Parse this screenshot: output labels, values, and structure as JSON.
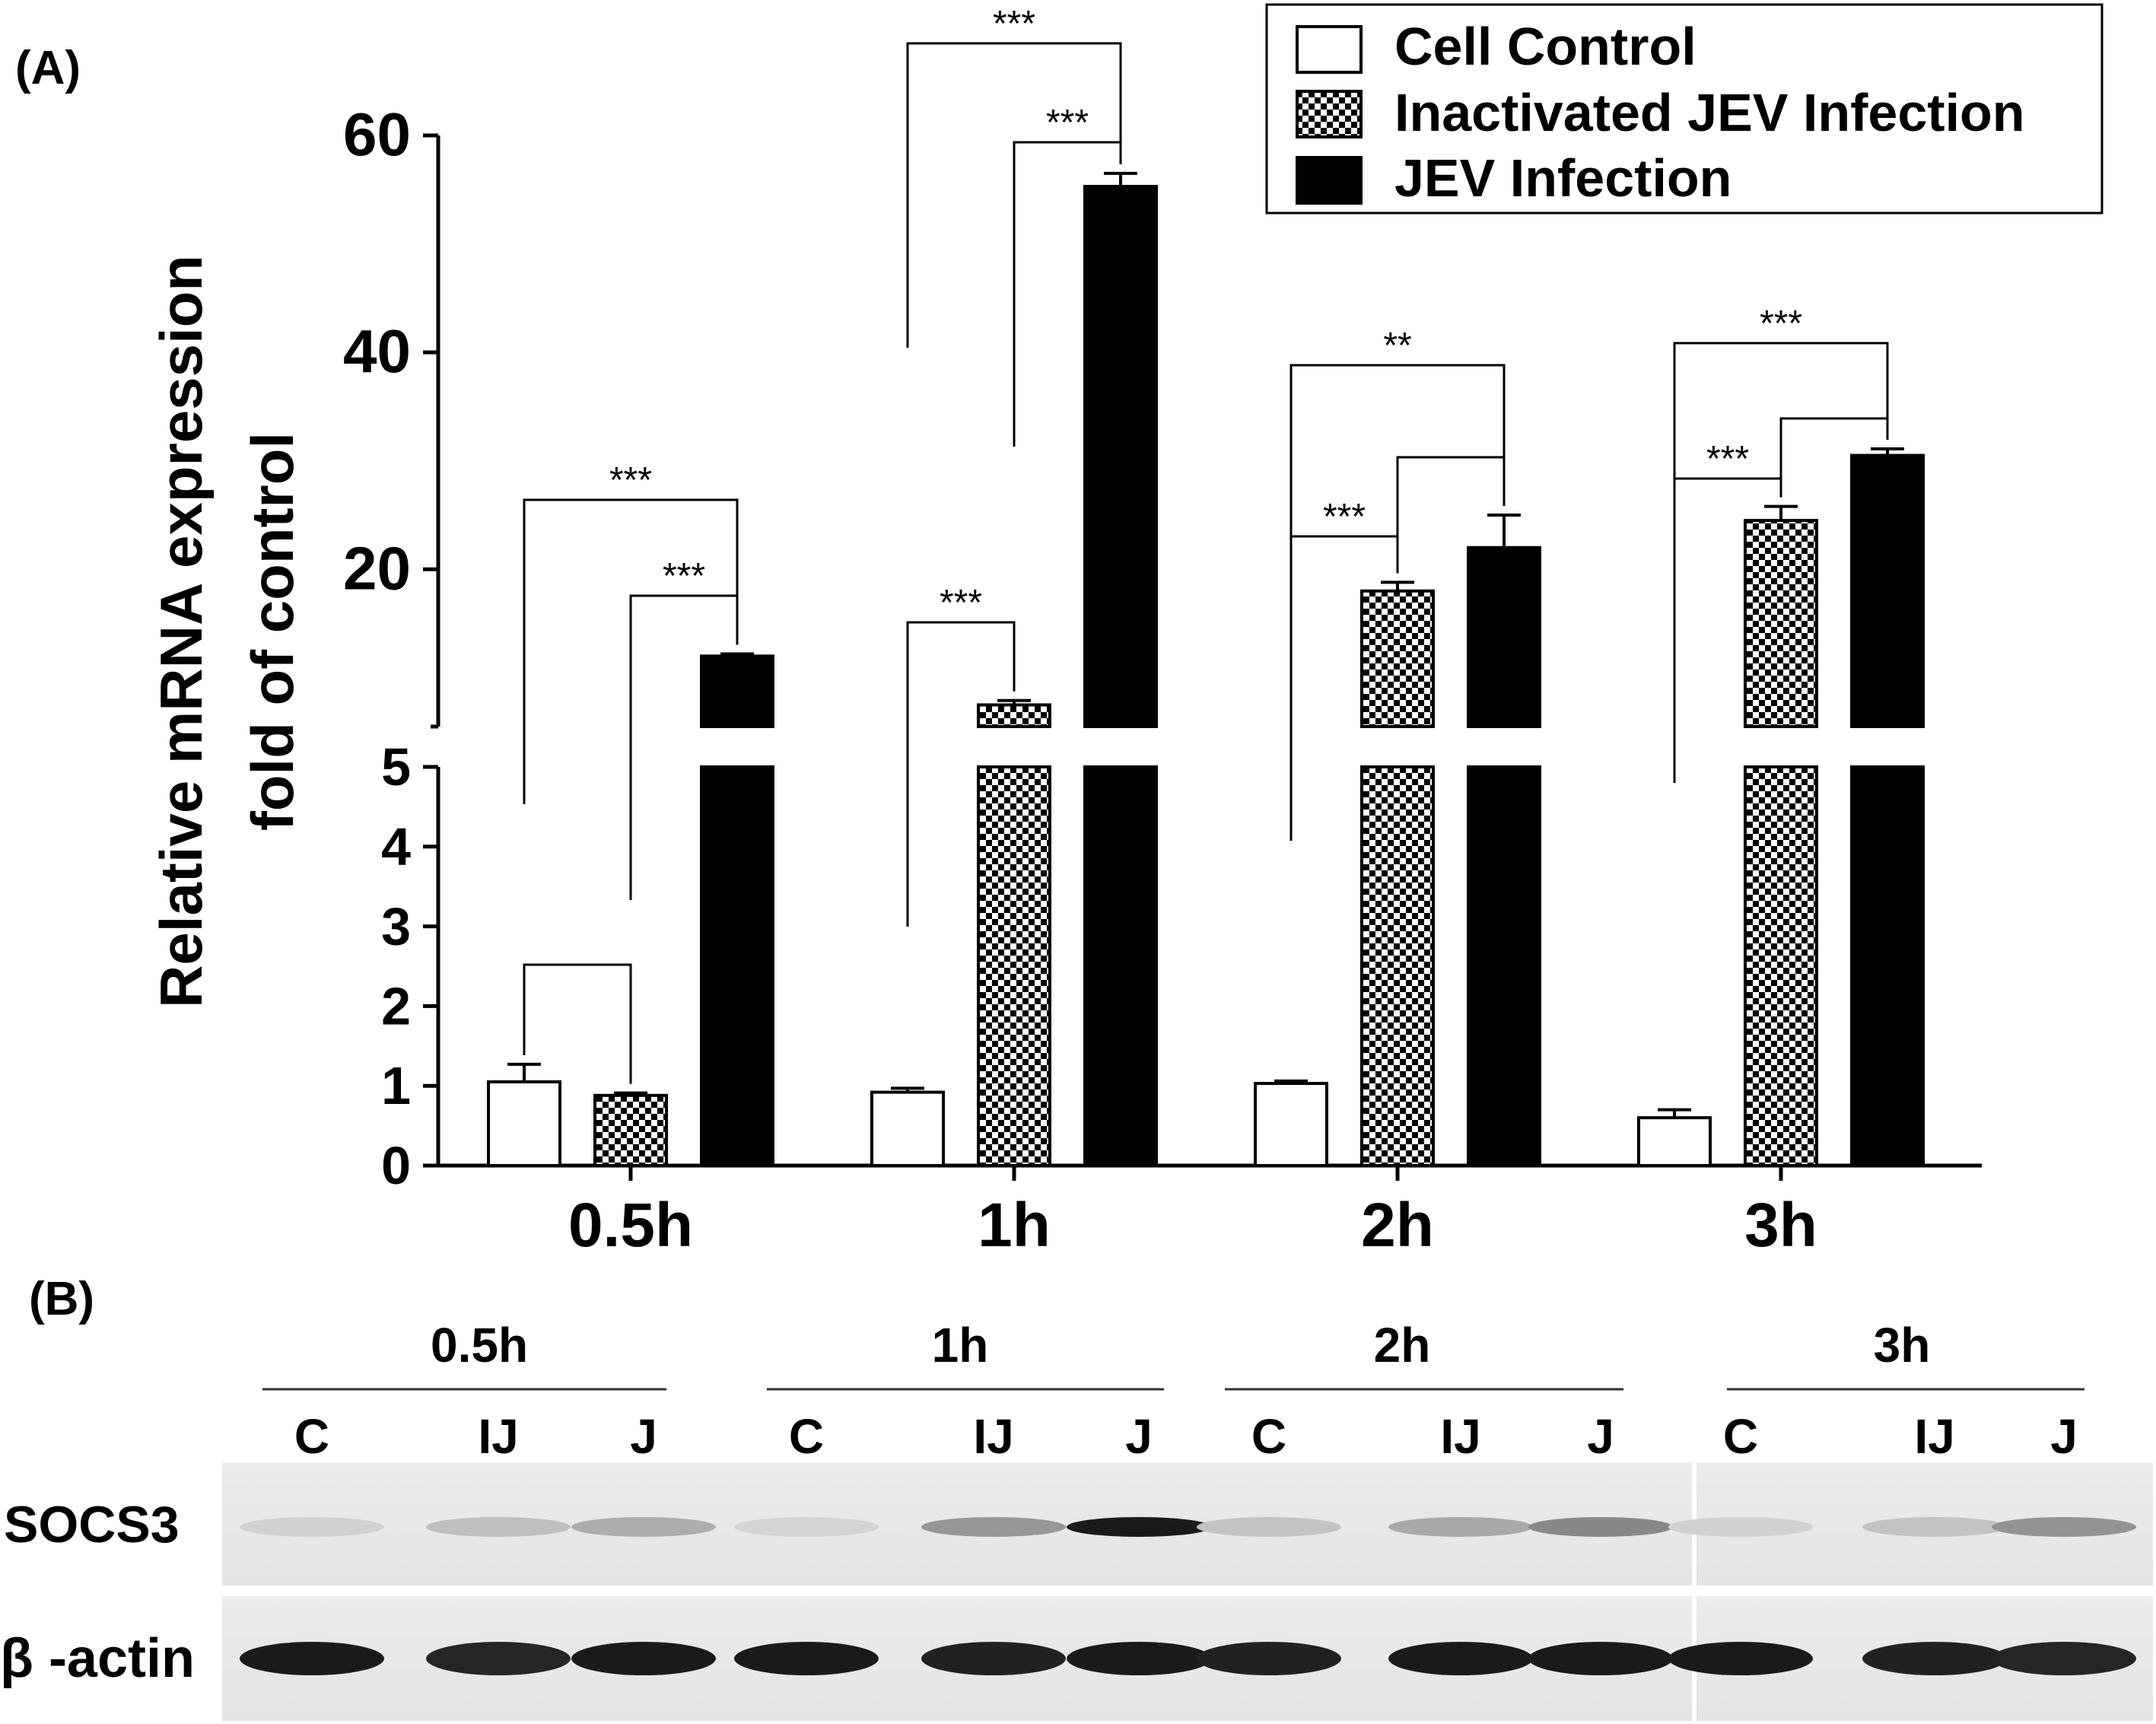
{
  "panel_a_label": "(A)",
  "panel_b_label": "(B)",
  "chart_data": {
    "type": "bar",
    "title": "",
    "xlabel": "",
    "ylabel": [
      "Relative mRNA expression",
      "fold of control"
    ],
    "categories": [
      "0.5h",
      "1h",
      "2h",
      "3h"
    ],
    "series": [
      {
        "name": "Cell Control",
        "pattern": "open",
        "values": [
          1.05,
          0.92,
          1.03,
          0.6
        ],
        "errors": [
          0.22,
          0.05,
          0.03,
          0.1
        ]
      },
      {
        "name": "Inactivated JEV Infection",
        "pattern": "checkered",
        "values": [
          0.88,
          7.5,
          18.0,
          24.5
        ],
        "errors": [
          0.03,
          0.4,
          0.8,
          1.3
        ]
      },
      {
        "name": "JEV Infection",
        "pattern": "solid",
        "values": [
          12.0,
          55.3,
          22.0,
          30.5
        ],
        "errors": [
          0.2,
          1.2,
          3.0,
          0.6
        ]
      }
    ],
    "y_axis_break": {
      "lower_range": [
        0,
        5
      ],
      "upper_range": [
        5.5,
        60
      ],
      "lower_ticks": [
        "0",
        "1",
        "2",
        "3",
        "4",
        "5"
      ],
      "upper_ticks": [
        "20",
        "40",
        "60"
      ]
    },
    "significance": [
      {
        "group": "0.5h",
        "pair": [
          "Cell Control",
          "JEV Infection"
        ],
        "label": "***"
      },
      {
        "group": "0.5h",
        "pair": [
          "Inactivated JEV Infection",
          "JEV Infection"
        ],
        "label": "***"
      },
      {
        "group": "0.5h",
        "pair": [
          "Cell Control",
          "Inactivated JEV Infection"
        ],
        "label": ""
      },
      {
        "group": "1h",
        "pair": [
          "Cell Control",
          "JEV Infection"
        ],
        "label": "***"
      },
      {
        "group": "1h",
        "pair": [
          "Inactivated JEV Infection",
          "JEV Infection"
        ],
        "label": "***"
      },
      {
        "group": "1h",
        "pair": [
          "Cell Control",
          "Inactivated JEV Infection"
        ],
        "label": "***"
      },
      {
        "group": "2h",
        "pair": [
          "Cell Control",
          "JEV Infection"
        ],
        "label": "**"
      },
      {
        "group": "2h",
        "pair": [
          "Inactivated JEV Infection",
          "JEV Infection"
        ],
        "label": ""
      },
      {
        "group": "2h",
        "pair": [
          "Cell Control",
          "Inactivated JEV Infection"
        ],
        "label": "***"
      },
      {
        "group": "3h",
        "pair": [
          "Cell Control",
          "JEV Infection"
        ],
        "label": "***"
      },
      {
        "group": "3h",
        "pair": [
          "Inactivated JEV Infection",
          "JEV Infection"
        ],
        "label": ""
      },
      {
        "group": "3h",
        "pair": [
          "Cell Control",
          "Inactivated JEV Infection"
        ],
        "label": "***"
      }
    ],
    "legend_position": "top-right",
    "grid": false
  },
  "blot": {
    "timepoints": [
      "0.5h",
      "1h",
      "2h",
      "3h"
    ],
    "lane_labels": [
      "C",
      "IJ",
      "J",
      "C",
      "IJ",
      "J",
      "C",
      "IJ",
      "J",
      "C",
      "IJ",
      "J"
    ],
    "rows": [
      {
        "label": "SOCS3",
        "band_intensity": [
          0.12,
          0.2,
          0.28,
          0.1,
          0.38,
          0.95,
          0.18,
          0.3,
          0.45,
          0.12,
          0.18,
          0.4
        ]
      },
      {
        "label": "β -actin",
        "band_intensity": [
          0.95,
          0.9,
          0.95,
          0.95,
          0.92,
          0.95,
          0.92,
          0.95,
          0.95,
          0.95,
          0.92,
          0.9
        ]
      }
    ]
  }
}
